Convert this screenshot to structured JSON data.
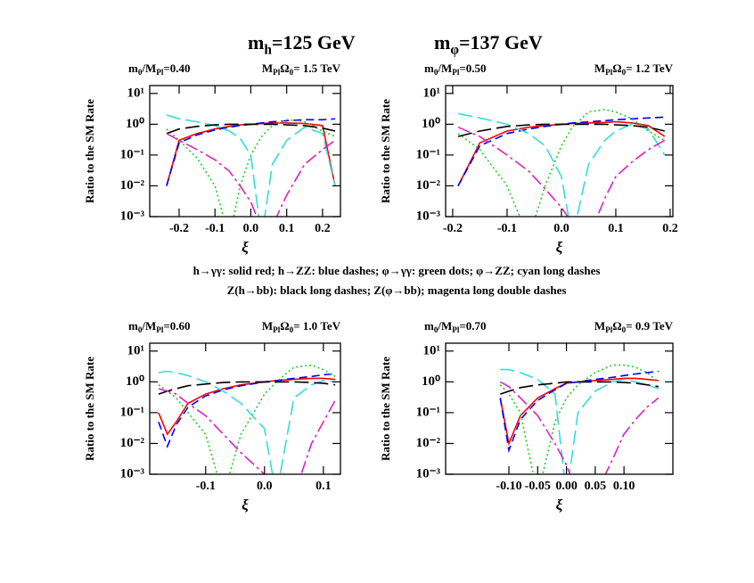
{
  "header": [
    [
      {
        "text": "m"
      },
      {
        "text": "h",
        "sub": true
      },
      {
        "text": "=125 GeV"
      }
    ],
    [
      {
        "text": "m"
      },
      {
        "text": "φ",
        "sub": true
      },
      {
        "text": "=137 GeV"
      }
    ]
  ],
  "caption": [
    "h→γγ: solid red; h→ZZ: blue dashes; φ→γγ: green dots; φ→ZZ; cyan long dashes",
    "Z(h→bb): black long dashes; Z(φ→bb); magenta long double dashes"
  ],
  "chart_data": [
    {
      "type": "line",
      "yscale": "log",
      "subtitle_left": [
        {
          "text": "m"
        },
        {
          "text": "0",
          "sub": true
        },
        {
          "text": "/M"
        },
        {
          "text": "Pl",
          "sub": true
        },
        {
          "text": "=0.40"
        }
      ],
      "subtitle_right": [
        {
          "text": "M"
        },
        {
          "text": "Pl",
          "sub": true
        },
        {
          "text": "Ω"
        },
        {
          "text": "0",
          "sub": true
        },
        {
          "text": "= 1.5 TeV"
        }
      ],
      "xlabel": "ξ",
      "ylabel": "Ratio to the SM Rate",
      "xlim": [
        -0.282,
        0.25
      ],
      "ylim": [
        0.001,
        18
      ],
      "xticks": [
        -0.2,
        -0.1,
        {
          "value": 0,
          "label": "0.0"
        },
        0.1,
        0.2
      ],
      "yticks": [
        {
          "value": 0.001,
          "label": "10⁻³"
        },
        {
          "value": 0.01,
          "label": "10⁻²"
        },
        {
          "value": 0.1,
          "label": "10⁻¹"
        },
        {
          "value": 1,
          "label": "10⁰"
        },
        {
          "value": 10,
          "label": "10¹"
        }
      ],
      "x": [
        -0.235,
        -0.2,
        -0.15,
        -0.1,
        -0.06,
        -0.03,
        0,
        0.03,
        0.06,
        0.1,
        0.15,
        0.2,
        0.235
      ],
      "series": [
        {
          "color": "#ff0000",
          "dash": "none",
          "values": [
            0.01,
            0.3,
            0.5,
            0.7,
            0.85,
            0.95,
            1,
            1.05,
            1.1,
            1.1,
            1.05,
            0.9,
            0.01
          ]
        },
        {
          "color": "#0000ff",
          "dash": "9 5",
          "values": [
            0.01,
            0.25,
            0.45,
            0.65,
            0.8,
            0.9,
            1,
            1.1,
            1.2,
            1.3,
            1.4,
            1.4,
            1.5
          ]
        },
        {
          "color": "#22cc22",
          "dash": "2 3",
          "values": [
            0.7,
            0.3,
            0.08,
            0.01,
            0.0002,
            0.01,
            0.1,
            0.4,
            0.9,
            1.4,
            1.2,
            0.6,
            0.4
          ]
        },
        {
          "color": "#33dddd",
          "dash": "16 6",
          "values": [
            2,
            1.5,
            1.2,
            0.9,
            0.6,
            0.35,
            0.1,
            0.0002,
            0.05,
            0.3,
            0.8,
            0.5,
            0.01
          ]
        },
        {
          "color": "#000000",
          "dash": "16 6",
          "values": [
            0.5,
            0.7,
            0.85,
            0.95,
            1,
            1,
            1,
            1,
            1,
            0.95,
            0.9,
            0.75,
            0.6
          ]
        },
        {
          "color": "#e020c0",
          "dash": "14 4 3 4",
          "values": [
            0.5,
            0.3,
            0.15,
            0.07,
            0.03,
            0.01,
            0.003,
            0.0004,
            0.0005,
            0.005,
            0.05,
            0.15,
            0.3
          ]
        }
      ]
    },
    {
      "type": "line",
      "yscale": "log",
      "subtitle_left": [
        {
          "text": "m"
        },
        {
          "text": "0",
          "sub": true
        },
        {
          "text": "/M"
        },
        {
          "text": "Pl",
          "sub": true
        },
        {
          "text": "=0.50"
        }
      ],
      "subtitle_right": [
        {
          "text": "M"
        },
        {
          "text": "Pl",
          "sub": true
        },
        {
          "text": "Ω"
        },
        {
          "text": "0",
          "sub": true
        },
        {
          "text": "= 1.2 TeV"
        }
      ],
      "xlabel": "ξ",
      "ylabel": "Ratio to the SM Rate",
      "xlim": [
        -0.213,
        0.205
      ],
      "ylim": [
        0.001,
        18
      ],
      "xticks": [
        -0.2,
        -0.1,
        {
          "value": 0,
          "label": "0.0"
        },
        0.1,
        0.2
      ],
      "yticks": [
        {
          "value": 0.001,
          "label": "10⁻³"
        },
        {
          "value": 0.01,
          "label": "10⁻²"
        },
        {
          "value": 0.1,
          "label": "10⁻¹"
        },
        {
          "value": 1,
          "label": "10⁰"
        },
        {
          "value": 10,
          "label": "10¹"
        }
      ],
      "x": [
        -0.19,
        -0.15,
        -0.1,
        -0.06,
        -0.03,
        0,
        0.02,
        0.05,
        0.08,
        0.1,
        0.13,
        0.16,
        0.19
      ],
      "series": [
        {
          "color": "#ff0000",
          "dash": "none",
          "values": [
            0.01,
            0.25,
            0.6,
            0.8,
            0.9,
            1,
            1.05,
            1.1,
            1.15,
            1.2,
            1.1,
            0.9,
            0.4
          ]
        },
        {
          "color": "#0000ff",
          "dash": "9 5",
          "values": [
            0.01,
            0.2,
            0.5,
            0.7,
            0.85,
            1,
            1.1,
            1.2,
            1.3,
            1.4,
            1.5,
            1.6,
            1.7
          ]
        },
        {
          "color": "#22cc22",
          "dash": "2 3",
          "values": [
            0.5,
            0.15,
            0.01,
            0.0002,
            0.01,
            0.2,
            0.8,
            2.5,
            3,
            2.5,
            1.5,
            0.6,
            0.3
          ]
        },
        {
          "color": "#33dddd",
          "dash": "16 6",
          "values": [
            2.2,
            1.6,
            1,
            0.5,
            0.2,
            0.02,
            0.0002,
            0.05,
            0.3,
            0.6,
            1,
            0.7,
            0.1
          ]
        },
        {
          "color": "#000000",
          "dash": "16 6",
          "values": [
            0.4,
            0.6,
            0.85,
            0.95,
            1,
            1,
            1,
            1,
            1,
            0.95,
            0.9,
            0.8,
            0.6
          ]
        },
        {
          "color": "#e020c0",
          "dash": "14 4 3 4",
          "values": [
            0.8,
            0.4,
            0.1,
            0.03,
            0.008,
            0.002,
            0.0006,
            0.0002,
            0.004,
            0.02,
            0.06,
            0.15,
            0.3
          ]
        }
      ]
    },
    {
      "type": "line",
      "yscale": "log",
      "subtitle_left": [
        {
          "text": "m"
        },
        {
          "text": "0",
          "sub": true
        },
        {
          "text": "/M"
        },
        {
          "text": "Pl",
          "sub": true
        },
        {
          "text": "=0.60"
        }
      ],
      "subtitle_right": [
        {
          "text": "M"
        },
        {
          "text": "Pl",
          "sub": true
        },
        {
          "text": "Ω"
        },
        {
          "text": "0",
          "sub": true
        },
        {
          "text": "= 1.0 TeV"
        }
      ],
      "xlabel": "ξ",
      "ylabel": "Ratio to the SM Rate",
      "xlim": [
        -0.195,
        0.129
      ],
      "ylim": [
        0.001,
        18
      ],
      "xticks": [
        -0.1,
        {
          "value": 0,
          "label": "0.0"
        },
        0.1
      ],
      "yticks": [
        {
          "value": 0.001,
          "label": "10⁻³"
        },
        {
          "value": 0.01,
          "label": "10⁻²"
        },
        {
          "value": 0.1,
          "label": "10⁻¹"
        },
        {
          "value": 1,
          "label": "10⁰"
        },
        {
          "value": 10,
          "label": "10¹"
        }
      ],
      "x": [
        -0.18,
        -0.165,
        -0.15,
        -0.13,
        -0.1,
        -0.07,
        -0.04,
        0,
        0.02,
        0.05,
        0.08,
        0.1,
        0.12
      ],
      "series": [
        {
          "color": "#ff0000",
          "dash": "none",
          "values": [
            0.1,
            0.02,
            0.05,
            0.2,
            0.4,
            0.6,
            0.8,
            1,
            1.1,
            1.2,
            1.3,
            1.3,
            1.2
          ]
        },
        {
          "color": "#0000ff",
          "dash": "9 5",
          "values": [
            0.05,
            0.008,
            0.04,
            0.15,
            0.35,
            0.55,
            0.75,
            1,
            1.1,
            1.3,
            1.5,
            1.7,
            1.8
          ]
        },
        {
          "color": "#22cc22",
          "dash": "2 3",
          "values": [
            0.8,
            0.5,
            0.3,
            0.1,
            0.02,
            0.0002,
            0.02,
            0.4,
            1,
            3,
            3.5,
            2.5,
            1.5
          ]
        },
        {
          "color": "#33dddd",
          "dash": "16 6",
          "values": [
            2,
            2.2,
            2,
            1.6,
            1,
            0.5,
            0.2,
            0.03,
            0.0002,
            0.3,
            0.8,
            1.1,
            1
          ]
        },
        {
          "color": "#000000",
          "dash": "16 6",
          "values": [
            0.4,
            0.5,
            0.6,
            0.75,
            0.85,
            0.95,
            1,
            1,
            1,
            1,
            0.95,
            0.9,
            0.8
          ]
        },
        {
          "color": "#e020c0",
          "dash": "14 4 3 4",
          "values": [
            0.6,
            0.5,
            0.4,
            0.2,
            0.08,
            0.02,
            0.005,
            0.001,
            0.0003,
            0.0002,
            0.01,
            0.05,
            0.25
          ]
        }
      ]
    },
    {
      "type": "line",
      "yscale": "log",
      "subtitle_left": [
        {
          "text": "m"
        },
        {
          "text": "0",
          "sub": true
        },
        {
          "text": "/M"
        },
        {
          "text": "Pl",
          "sub": true
        },
        {
          "text": "=0.70"
        }
      ],
      "subtitle_right": [
        {
          "text": "M"
        },
        {
          "text": "Pl",
          "sub": true
        },
        {
          "text": "Ω"
        },
        {
          "text": "0",
          "sub": true
        },
        {
          "text": "= 0.9 TeV"
        }
      ],
      "xlabel": "ξ",
      "ylabel": "Ratio to the SM Rate",
      "xlim": [
        -0.21,
        0.185
      ],
      "ylim": [
        0.001,
        18
      ],
      "xticks": [
        {
          "value": -0.1,
          "label": "-0.10"
        },
        {
          "value": -0.05,
          "label": "-0.05"
        },
        {
          "value": 0,
          "label": "0.00"
        },
        {
          "value": 0.05,
          "label": "0.05"
        },
        {
          "value": 0.1,
          "label": "0.10"
        }
      ],
      "yticks": [
        {
          "value": 0.001,
          "label": "10⁻³"
        },
        {
          "value": 0.01,
          "label": "10⁻²"
        },
        {
          "value": 0.1,
          "label": "10⁻¹"
        },
        {
          "value": 1,
          "label": "10⁰"
        },
        {
          "value": 10,
          "label": "10¹"
        }
      ],
      "x": [
        -0.115,
        -0.1,
        -0.08,
        -0.05,
        -0.02,
        0,
        0.02,
        0.05,
        0.08,
        0.1,
        0.12,
        0.14,
        0.16
      ],
      "series": [
        {
          "color": "#ff0000",
          "dash": "none",
          "values": [
            0.3,
            0.01,
            0.08,
            0.3,
            0.6,
            0.9,
            1,
            1.1,
            1.2,
            1.3,
            1.3,
            1.2,
            1.1
          ]
        },
        {
          "color": "#0000ff",
          "dash": "9 5",
          "values": [
            0.3,
            0.006,
            0.06,
            0.25,
            0.55,
            0.9,
            1,
            1.2,
            1.4,
            1.6,
            1.8,
            2,
            2.2
          ]
        },
        {
          "color": "#22cc22",
          "dash": "2 3",
          "values": [
            0.8,
            0.4,
            0.1,
            0.0002,
            0.05,
            0.3,
            0.8,
            2,
            3.5,
            3.5,
            3,
            2,
            1
          ]
        },
        {
          "color": "#33dddd",
          "dash": "16 6",
          "values": [
            2.5,
            2.5,
            2,
            1.2,
            0.4,
            0.0002,
            0.1,
            0.5,
            1,
            1.2,
            1,
            0.8,
            0.6
          ]
        },
        {
          "color": "#000000",
          "dash": "16 6",
          "values": [
            0.4,
            0.5,
            0.65,
            0.8,
            0.9,
            1,
            1,
            1,
            1,
            0.95,
            0.9,
            0.8,
            0.7
          ]
        },
        {
          "color": "#e020c0",
          "dash": "14 4 3 4",
          "values": [
            1,
            0.7,
            0.3,
            0.08,
            0.01,
            0.002,
            0.0002,
            0.0002,
            0.003,
            0.02,
            0.06,
            0.15,
            0.3
          ]
        }
      ]
    }
  ]
}
